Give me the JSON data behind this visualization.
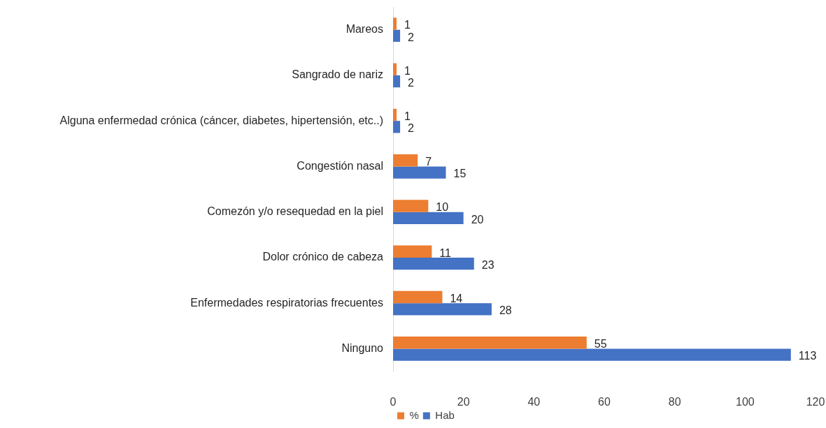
{
  "chart_data": {
    "type": "bar",
    "orientation": "horizontal",
    "categories": [
      "Mareos",
      "Sangrado de nariz",
      "Alguna enfermedad crónica (cáncer, diabetes, hipertensión, etc..)",
      "Congestión nasal",
      "Comezón y/o resequedad en la piel",
      "Dolor crónico de cabeza",
      "Enfermedades respiratorias frecuentes",
      "Ninguno"
    ],
    "series": [
      {
        "name": "%",
        "color": "#ed7d31",
        "values": [
          1,
          1,
          1,
          7,
          10,
          11,
          14,
          55
        ]
      },
      {
        "name": "Hab",
        "color": "#4472c4",
        "values": [
          2,
          2,
          2,
          15,
          20,
          23,
          28,
          113
        ]
      }
    ],
    "xlim": [
      0,
      120
    ],
    "xticks": [
      0,
      20,
      40,
      60,
      80,
      100,
      120
    ],
    "grid": false,
    "legend": "bottom",
    "data_labels": true
  }
}
